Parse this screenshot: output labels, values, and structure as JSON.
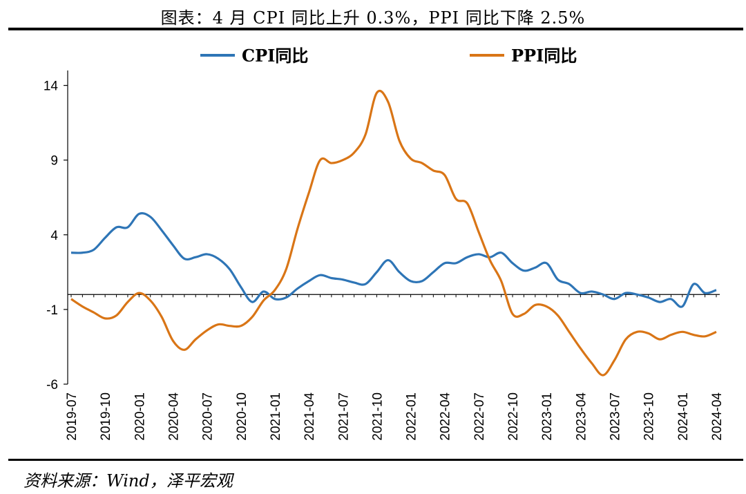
{
  "title": "图表：4 月 CPI 同比上升 0.3%，PPI 同比下降 2.5%",
  "source": "资料来源：Wind，泽平宏观",
  "chart_data": {
    "type": "line",
    "ylim": [
      -6,
      15
    ],
    "yticks": [
      -6,
      -1,
      4,
      9,
      14
    ],
    "xtick_labels": [
      "2019-07",
      "2019-10",
      "2020-01",
      "2020-04",
      "2020-07",
      "2020-10",
      "2021-01",
      "2021-04",
      "2021-07",
      "2021-10",
      "2022-01",
      "2022-04",
      "2022-07",
      "2022-10",
      "2023-01",
      "2023-04",
      "2023-07",
      "2023-10",
      "2024-01",
      "2024-04"
    ],
    "x": [
      "2019-07",
      "2019-08",
      "2019-09",
      "2019-10",
      "2019-11",
      "2019-12",
      "2020-01",
      "2020-02",
      "2020-03",
      "2020-04",
      "2020-05",
      "2020-06",
      "2020-07",
      "2020-08",
      "2020-09",
      "2020-10",
      "2020-11",
      "2020-12",
      "2021-01",
      "2021-02",
      "2021-03",
      "2021-04",
      "2021-05",
      "2021-06",
      "2021-07",
      "2021-08",
      "2021-09",
      "2021-10",
      "2021-11",
      "2021-12",
      "2022-01",
      "2022-02",
      "2022-03",
      "2022-04",
      "2022-05",
      "2022-06",
      "2022-07",
      "2022-08",
      "2022-09",
      "2022-10",
      "2022-11",
      "2022-12",
      "2023-01",
      "2023-02",
      "2023-03",
      "2023-04",
      "2023-05",
      "2023-06",
      "2023-07",
      "2023-08",
      "2023-09",
      "2023-10",
      "2023-11",
      "2023-12",
      "2024-01",
      "2024-02",
      "2024-03",
      "2024-04"
    ],
    "legend_position": "top",
    "grid": false,
    "series": [
      {
        "name": "CPI同比",
        "color": "#2E75B6",
        "values": [
          2.8,
          2.8,
          3.0,
          3.8,
          4.5,
          4.5,
          5.4,
          5.2,
          4.3,
          3.3,
          2.4,
          2.5,
          2.7,
          2.4,
          1.7,
          0.5,
          -0.5,
          0.2,
          -0.3,
          -0.2,
          0.4,
          0.9,
          1.3,
          1.1,
          1.0,
          0.8,
          0.7,
          1.5,
          2.3,
          1.5,
          0.9,
          0.9,
          1.5,
          2.1,
          2.1,
          2.5,
          2.7,
          2.5,
          2.8,
          2.1,
          1.6,
          1.8,
          2.1,
          1.0,
          0.7,
          0.1,
          0.2,
          0.0,
          -0.3,
          0.1,
          0.0,
          -0.2,
          -0.5,
          -0.3,
          -0.8,
          0.7,
          0.1,
          0.3
        ]
      },
      {
        "name": "PPI同比",
        "color": "#D97516",
        "values": [
          -0.3,
          -0.8,
          -1.2,
          -1.6,
          -1.4,
          -0.5,
          0.1,
          -0.4,
          -1.5,
          -3.1,
          -3.7,
          -3.0,
          -2.4,
          -2.0,
          -2.1,
          -2.1,
          -1.5,
          -0.4,
          0.3,
          1.7,
          4.4,
          6.8,
          9.0,
          8.8,
          9.0,
          9.5,
          10.7,
          13.5,
          12.9,
          10.3,
          9.1,
          8.8,
          8.3,
          8.0,
          6.4,
          6.1,
          4.2,
          2.3,
          0.9,
          -1.3,
          -1.3,
          -0.7,
          -0.8,
          -1.4,
          -2.5,
          -3.6,
          -4.6,
          -5.4,
          -4.4,
          -3.0,
          -2.5,
          -2.6,
          -3.0,
          -2.7,
          -2.5,
          -2.7,
          -2.8,
          -2.5
        ]
      }
    ]
  }
}
